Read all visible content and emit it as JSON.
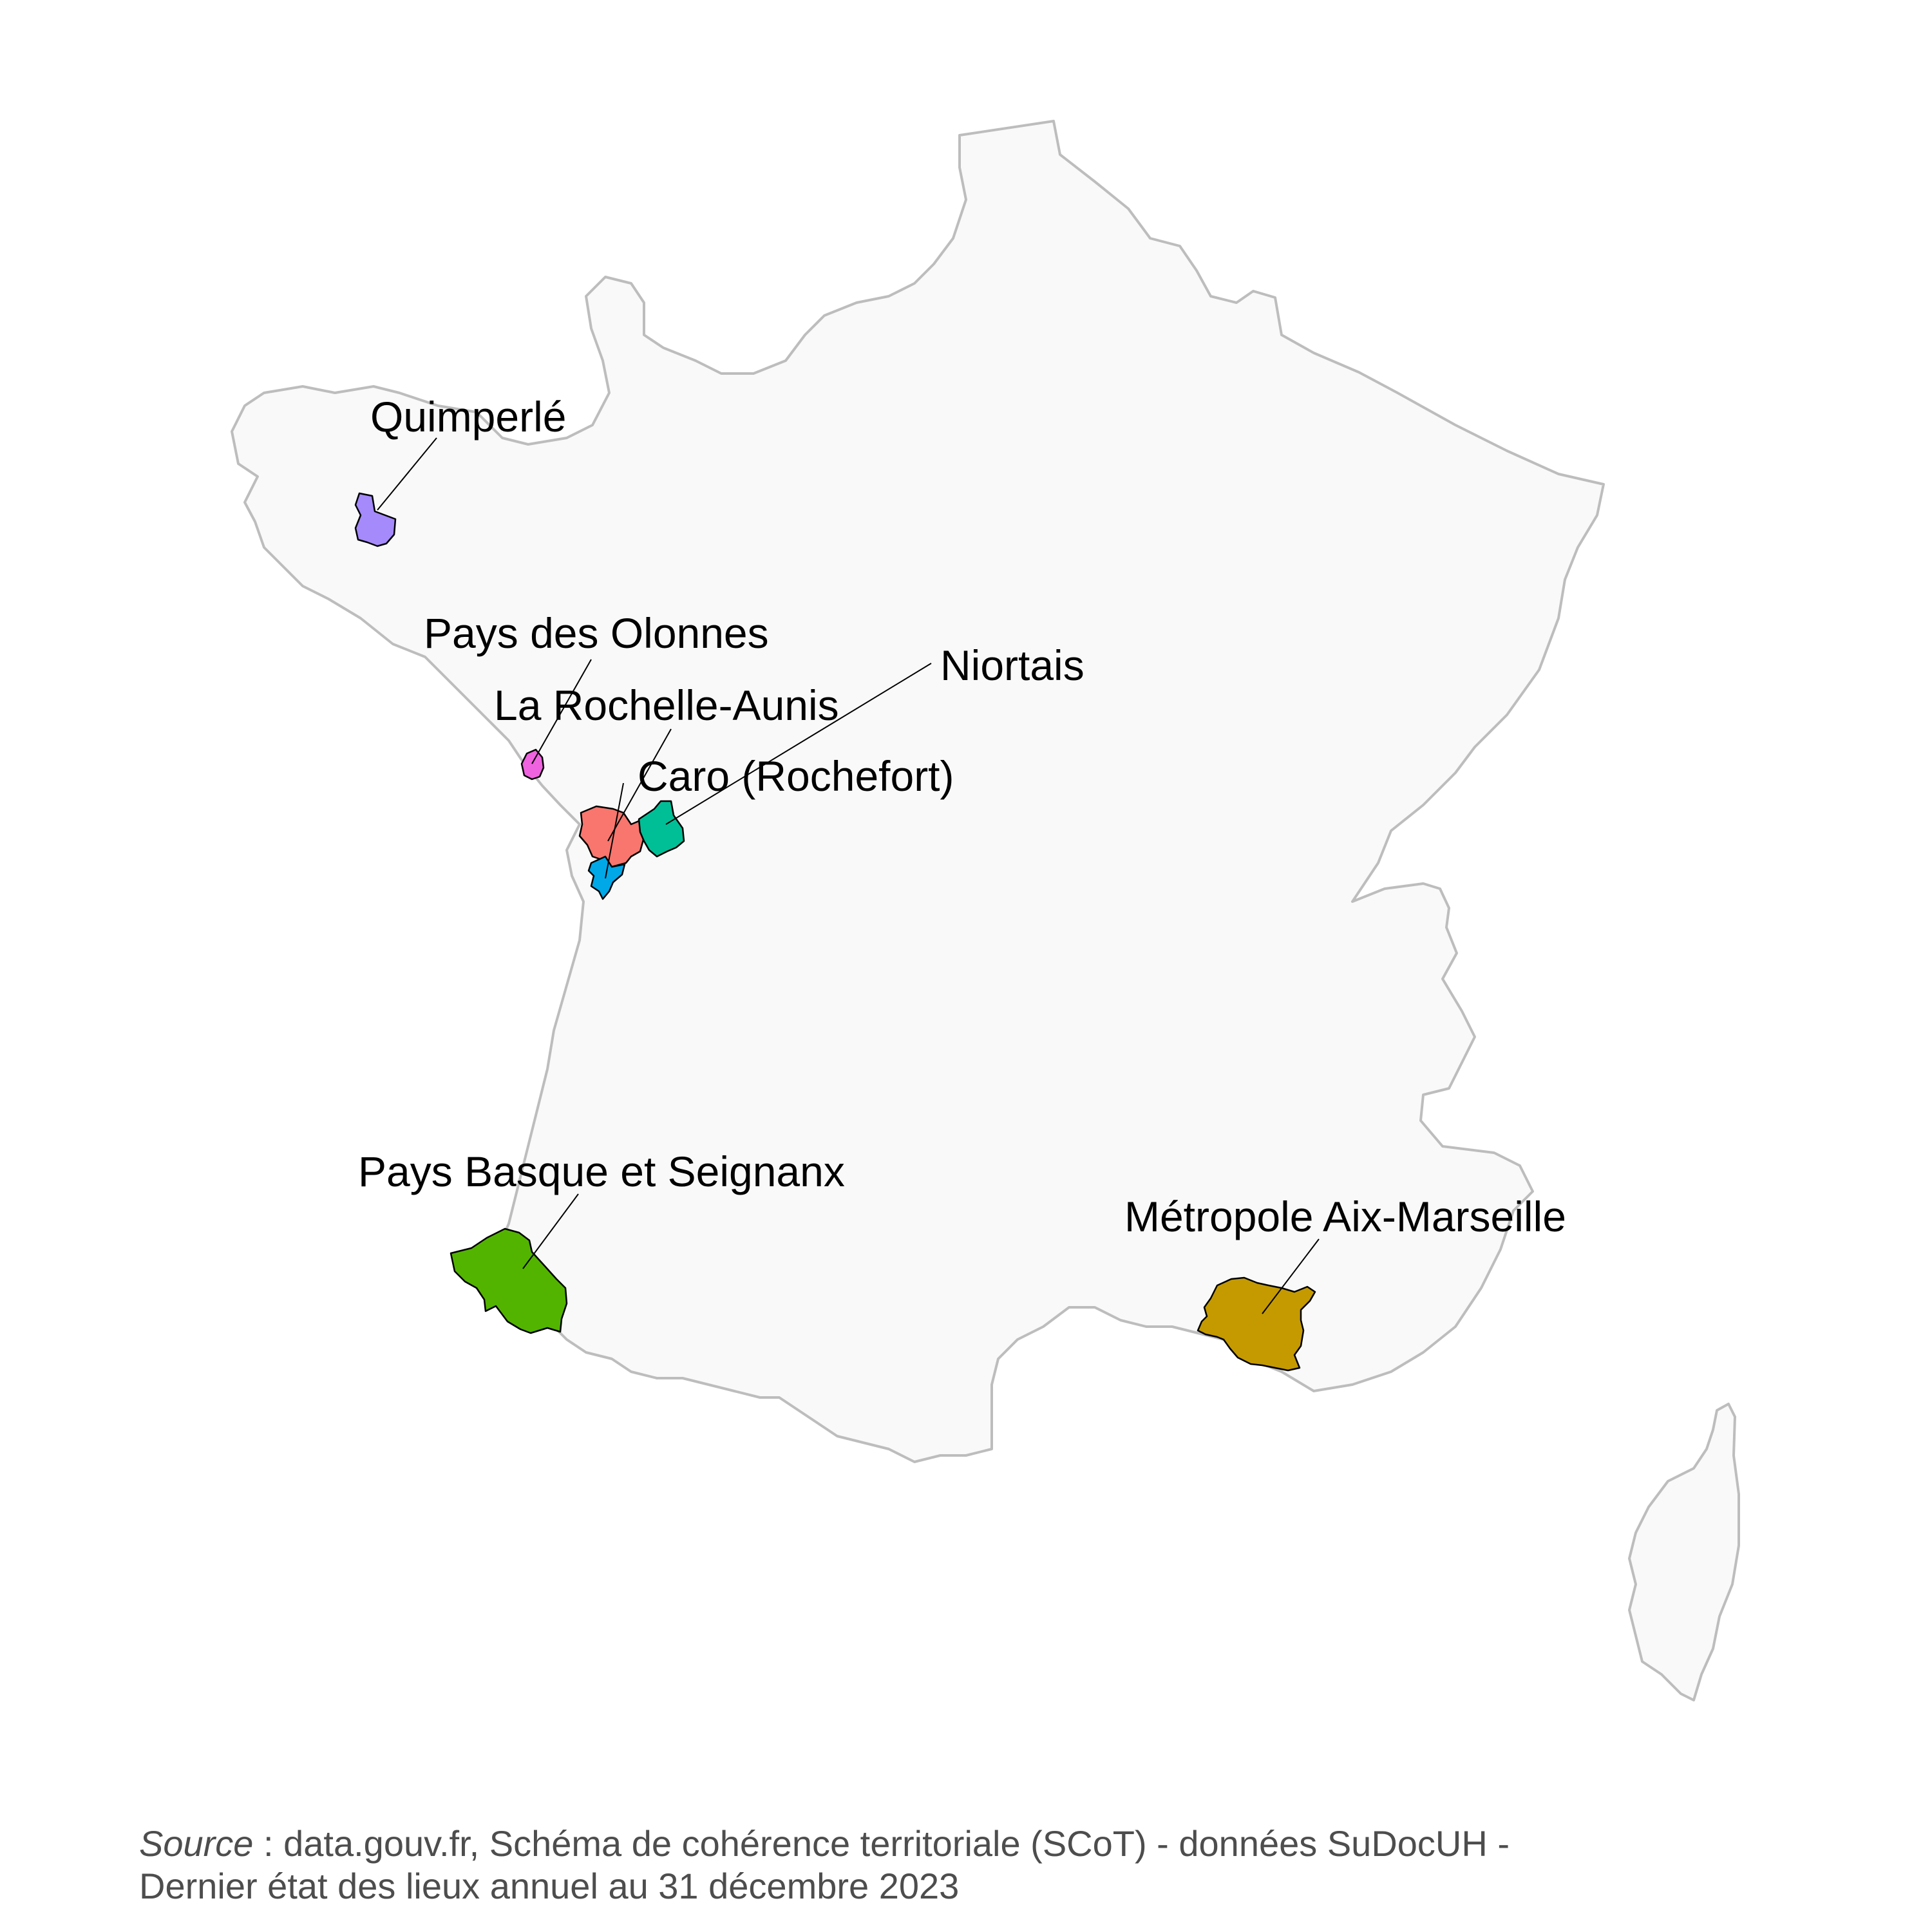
{
  "map": {
    "territories": [
      {
        "key": "quimperle",
        "label": "Quimperlé",
        "color": "#a58afc"
      },
      {
        "key": "olonnes",
        "label": "Pays des Olonnes",
        "color": "#f063e0"
      },
      {
        "key": "rochelle",
        "label": "La Rochelle-Aunis",
        "color": "#f8766d"
      },
      {
        "key": "niortais",
        "label": "Niortais",
        "color": "#00bf96"
      },
      {
        "key": "caro",
        "label": "Caro (Rochefort)",
        "color": "#00a8e8"
      },
      {
        "key": "basque",
        "label": "Pays Basque et Seignanx",
        "color": "#53b400"
      },
      {
        "key": "aixmarseille",
        "label": "Métropole Aix-Marseille",
        "color": "#c49a00"
      }
    ],
    "country_fill": "#f9f9f9",
    "country_border": "#bdbdbd"
  },
  "source": {
    "prefix": "Source",
    "separator": " : ",
    "line1": "data.gouv.fr, Schéma de cohérence territoriale (SCoT) - données SuDocUH -",
    "line2": "Dernier état des lieux annuel au 31 décembre 2023"
  }
}
